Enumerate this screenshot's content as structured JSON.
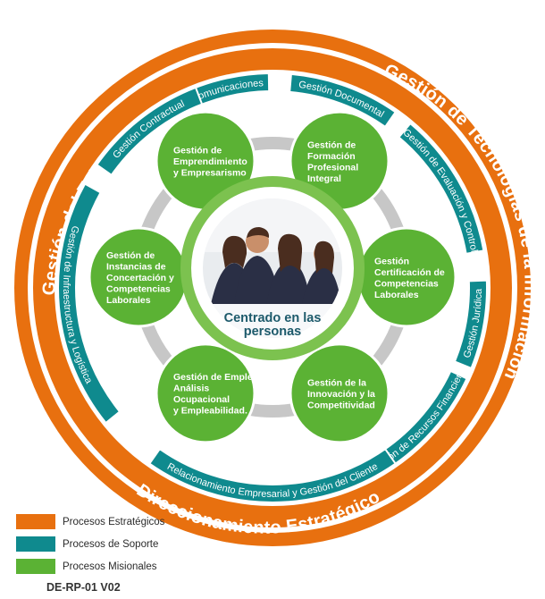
{
  "colors": {
    "orange": "#e8700f",
    "teal": "#0f8a8e",
    "green": "#5bb234",
    "grey": "#c7c7c7"
  },
  "strategic": {
    "arcs": [
      "Gestión del Talento Humano",
      "Gestión de Tecnologías de la Información",
      "Direccionamiento Estratégico"
    ]
  },
  "support": {
    "boxes": [
      "Gestión de Comunicaciones",
      "Gestión Documental",
      "Gestión de Evaluación y Control",
      "Gestión Jurídica",
      "Gestión de Recursos Financieros",
      "Relacionamiento Empresarial y Gestión del Cliente",
      "Gestión de Infraestructura y Logística",
      "Gestión Contractual"
    ]
  },
  "missional": {
    "bubbles": [
      "Gestión de|Formación|Profesional|Integral",
      "Gestión|Certificación de|Competencias|Laborales",
      "Gestión de la|Innovación y la|Competitividad",
      "Gestión de Empleo,|Análisis|Ocupacional|y Empleabilidad.",
      "Gestión de|Instancias de|Concertación y|Competencias|Laborales",
      "Gestión de|Emprendimiento|y Empresarismo"
    ]
  },
  "center": {
    "photo_icon": "people-photo-icon",
    "label": "Centrado en las|personas"
  },
  "legend": [
    {
      "label": "Procesos Estratégicos",
      "color": "#e8700f"
    },
    {
      "label": "Procesos de Soporte",
      "color": "#0f8a8e"
    },
    {
      "label": "Procesos Misionales",
      "color": "#5bb234"
    }
  ],
  "doc_code": "DE-RP-01 V02"
}
